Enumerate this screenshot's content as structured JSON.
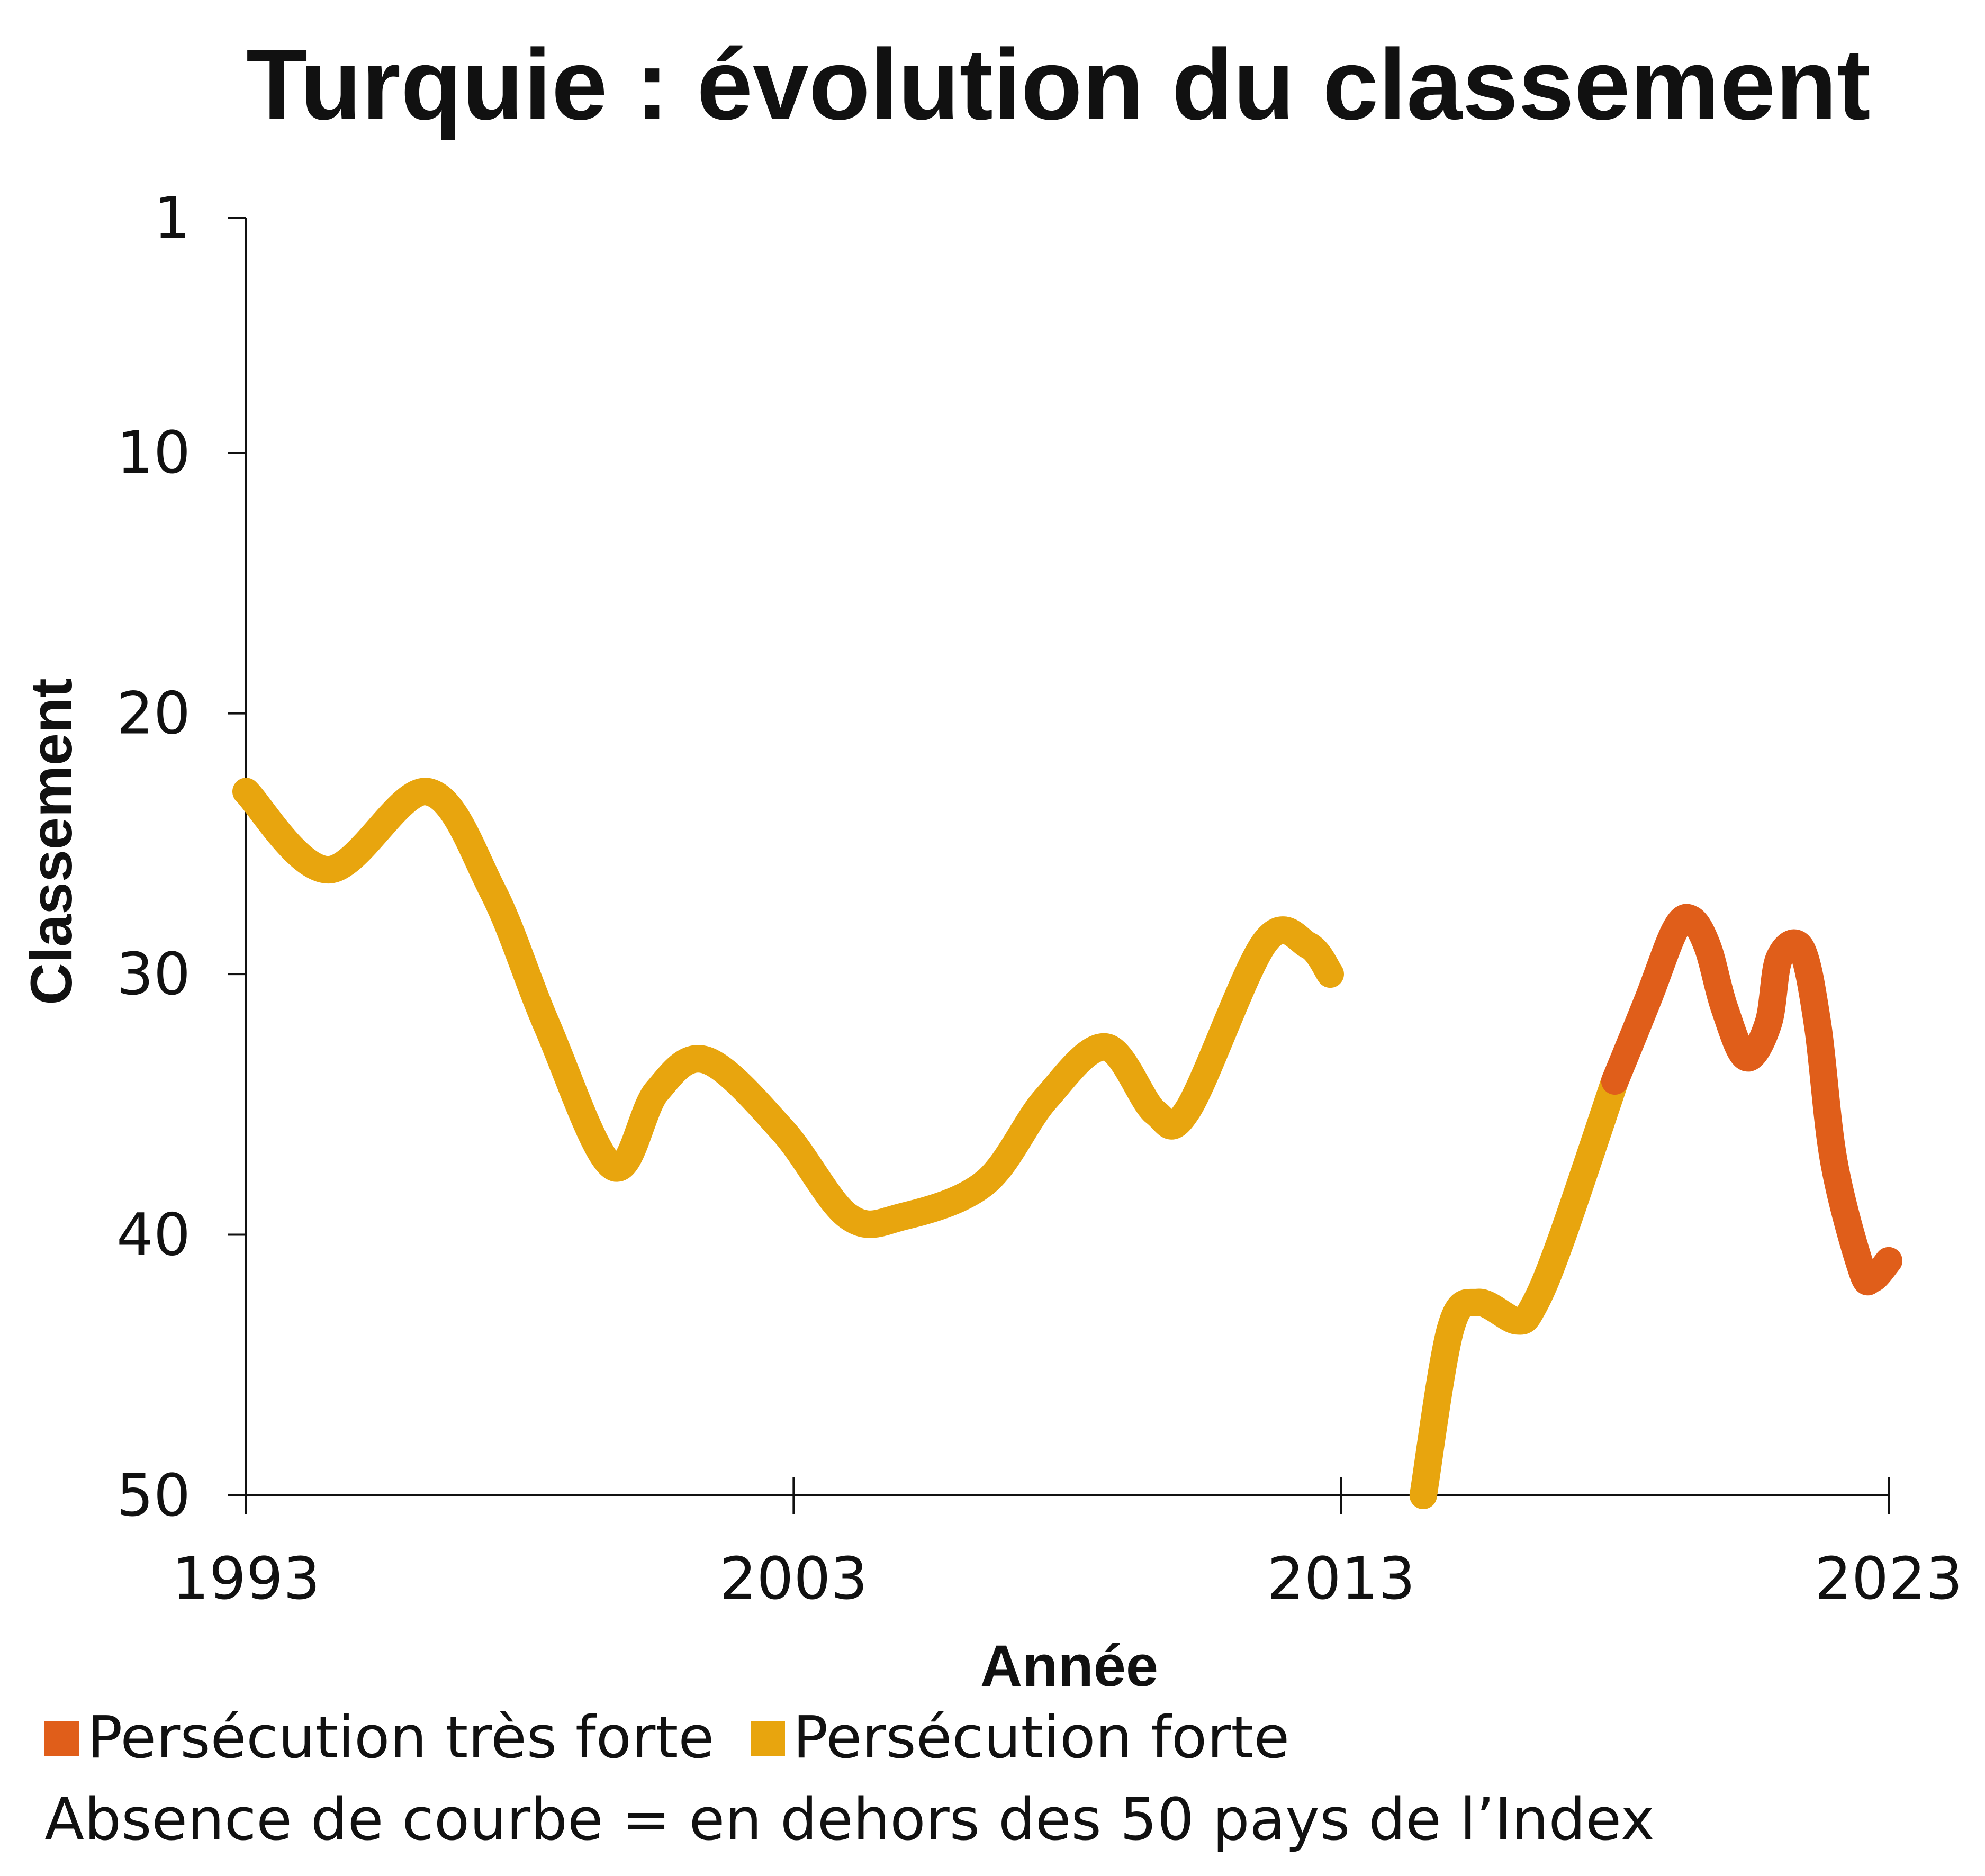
{
  "chart_data": {
    "type": "line",
    "title": "Turquie : évolution du classement",
    "xlabel": "Année",
    "ylabel": "Classement",
    "xlim": [
      1993,
      2023
    ],
    "ylim": [
      1,
      50
    ],
    "y_inverted": true,
    "x_ticks": [
      "1993",
      "2003",
      "2013",
      "2023"
    ],
    "x_tick_values": [
      1993,
      2003,
      2013,
      2023
    ],
    "y_ticks": [
      "1",
      "10",
      "20",
      "30",
      "40",
      "50"
    ],
    "y_tick_values": [
      1,
      10,
      20,
      30,
      40,
      50
    ],
    "grid": false,
    "legend_position": "bottom-left",
    "series": [
      {
        "name": "Persécution forte",
        "color": "#E8A50E",
        "segments": [
          [
            [
              1993,
              23
            ],
            [
              1994.5,
              26
            ],
            [
              1996.3,
              23
            ],
            [
              1997.5,
              26.8
            ],
            [
              1998.5,
              32
            ],
            [
              1999.7,
              37.4
            ],
            [
              2000.5,
              34.5
            ],
            [
              2001.4,
              33.3
            ],
            [
              2002.8,
              36
            ],
            [
              2004,
              39.3
            ],
            [
              2005,
              39.3
            ],
            [
              2006.5,
              38
            ],
            [
              2007.6,
              34.8
            ],
            [
              2008.7,
              32.8
            ],
            [
              2009.6,
              35.3
            ],
            [
              2010.2,
              35.2
            ],
            [
              2011.6,
              28.8
            ],
            [
              2012.4,
              28.9
            ],
            [
              2012.8,
              30
            ]
          ],
          [
            [
              2014.5,
              50
            ],
            [
              2015,
              43.6
            ],
            [
              2015.5,
              42.6
            ],
            [
              2016.2,
              43.3
            ],
            [
              2016.5,
              42.8
            ],
            [
              2017,
              40.3
            ],
            [
              2018,
              34.1
            ]
          ]
        ]
      },
      {
        "name": "Persécution très forte",
        "color": "#E05E1A",
        "segments": [
          [
            [
              2018,
              34.1
            ],
            [
              2018.6,
              31
            ],
            [
              2019.1,
              28.3
            ],
            [
              2019.4,
              27.9
            ],
            [
              2019.7,
              29
            ],
            [
              2020,
              31.3
            ],
            [
              2020.4,
              33.2
            ],
            [
              2020.8,
              31.9
            ],
            [
              2021,
              29.4
            ],
            [
              2021.4,
              29
            ],
            [
              2021.7,
              31.9
            ],
            [
              2022,
              37.2
            ],
            [
              2022.5,
              41.3
            ],
            [
              2022.7,
              41.7
            ],
            [
              2023,
              41
            ]
          ]
        ]
      }
    ]
  },
  "legend": {
    "items": [
      {
        "label": "Persécution très forte",
        "color": "#E05E1A"
      },
      {
        "label": "Persécution forte",
        "color": "#E8A50E"
      }
    ],
    "note": "Absence de courbe = en dehors des 50 pays de l’Index"
  }
}
